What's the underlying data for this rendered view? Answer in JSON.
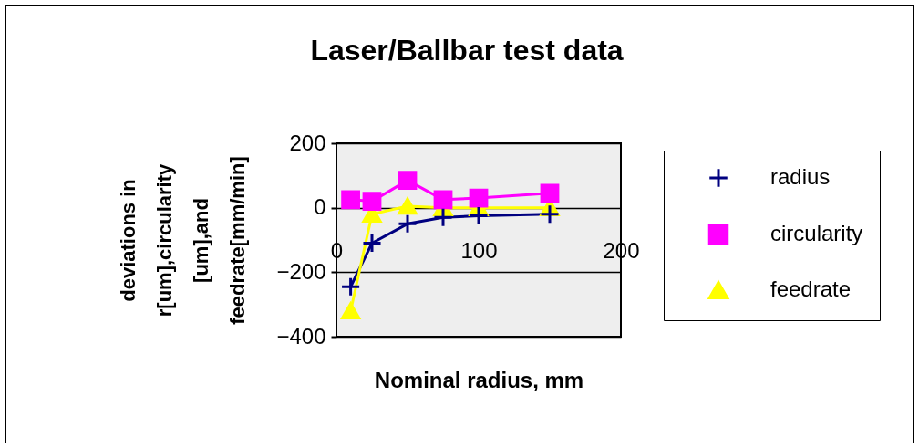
{
  "chart_data": {
    "type": "line",
    "title": "Laser/Ballbar test data",
    "xlabel": "Nominal radius, mm",
    "ylabel": "deviations in r[um],circularity [um],and feedrate[mm/min]",
    "x": [
      10,
      25,
      50,
      75,
      100,
      150
    ],
    "series": [
      {
        "name": "radius",
        "color": "#000080",
        "marker": "cross",
        "values": [
          -245,
          -110,
          -50,
          -30,
          -25,
          -20
        ]
      },
      {
        "name": "circularity",
        "color": "#ff00ff",
        "marker": "square",
        "values": [
          25,
          20,
          85,
          25,
          30,
          45
        ]
      },
      {
        "name": "feedrate",
        "color": "#ffff00",
        "marker": "triangle",
        "values": [
          -320,
          -20,
          5,
          0,
          0,
          0
        ]
      }
    ],
    "xlim": [
      0,
      200
    ],
    "xticks": [
      0,
      100,
      200
    ],
    "ylim": [
      -400,
      200
    ],
    "yticks": [
      -400,
      -200,
      0,
      200
    ],
    "grid": "y",
    "legend": "right"
  }
}
